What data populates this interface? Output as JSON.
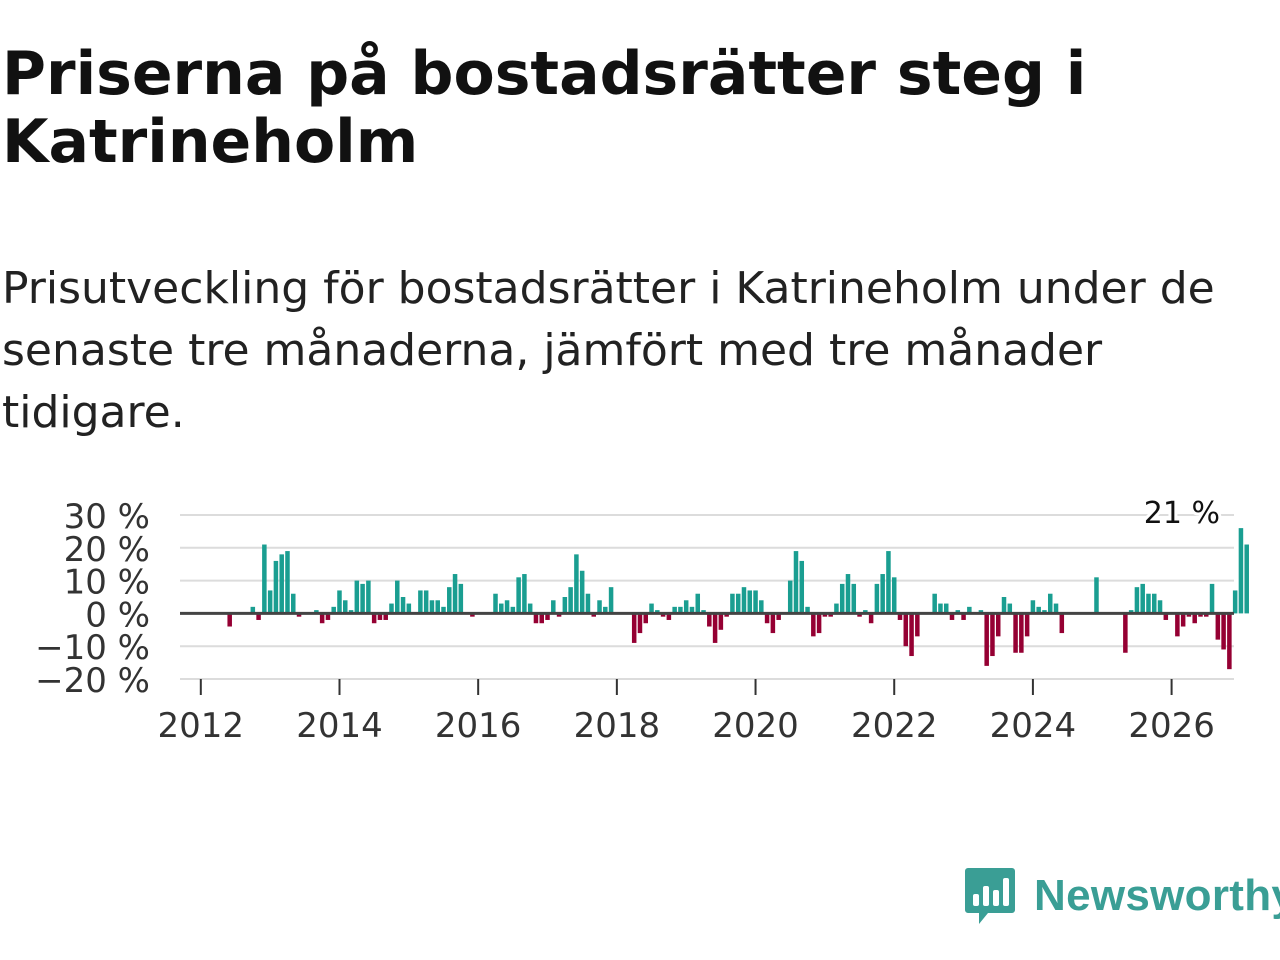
{
  "title": "Priserna på bostadsrätter steg i Katrineholm",
  "subtitle": "Prisutveckling för bostadsrätter i Katrineholm under de senaste tre månaderna, jämfört med tre månader tidigare.",
  "brand": {
    "name": "Newsworthy",
    "icon": "newsworthy-logo-icon",
    "color": "#3a9e95"
  },
  "colors": {
    "positive": "#1a9e91",
    "negative": "#950033",
    "grid": "#dcdcdc",
    "zero": "#444444"
  },
  "chart_data": {
    "type": "bar",
    "title": "Priserna på bostadsrätter steg i Katrineholm",
    "xlabel": "",
    "ylabel": "",
    "ylim": [
      -20,
      30
    ],
    "xlim": [
      2011.7,
      2026.9
    ],
    "yticks": [
      30,
      20,
      10,
      0,
      -10,
      -20
    ],
    "ytick_labels": [
      "30 %",
      "20 %",
      "10 %",
      "0 %",
      "−10 %",
      "−20 %"
    ],
    "xticks": [
      2012,
      2014,
      2016,
      2018,
      2020,
      2022,
      2024,
      2026
    ],
    "xtick_labels": [
      "2012",
      "2014",
      "2016",
      "2018",
      "2020",
      "2022",
      "2024",
      "2026"
    ],
    "annotation": {
      "text": "21 %",
      "x": 2026.15,
      "value": 21
    },
    "series": [
      {
        "name": "Prisutveckling (%)",
        "start": 2012.0,
        "step": 0.0833333,
        "values": [
          0,
          0,
          0,
          0,
          0,
          -4,
          0,
          0,
          0,
          2,
          -2,
          21,
          7,
          16,
          18,
          19,
          6,
          -1,
          0,
          0,
          1,
          -3,
          -2,
          2,
          7,
          4,
          1,
          10,
          9,
          10,
          -3,
          -2,
          -2,
          3,
          10,
          5,
          3,
          0,
          7,
          7,
          4,
          4,
          2,
          8,
          12,
          9,
          0,
          -1,
          0,
          0,
          0,
          6,
          3,
          4,
          2,
          11,
          12,
          3,
          -3,
          -3,
          -2,
          4,
          -1,
          5,
          8,
          18,
          13,
          6,
          -1,
          4,
          2,
          8,
          0,
          0,
          0,
          -9,
          -6,
          -3,
          3,
          1,
          -1,
          -2,
          2,
          2,
          4,
          2,
          6,
          1,
          -4,
          -9,
          -5,
          -1,
          6,
          6,
          8,
          7,
          7,
          4,
          -3,
          -6,
          -2,
          0,
          10,
          19,
          16,
          2,
          -7,
          -6,
          -1,
          -1,
          3,
          9,
          12,
          9,
          -1,
          1,
          -3,
          9,
          12,
          19,
          11,
          -2,
          -10,
          -13,
          -7,
          0,
          0,
          6,
          3,
          3,
          -2,
          1,
          -2,
          2,
          0,
          1,
          -16,
          -13,
          -7,
          5,
          3,
          -12,
          -12,
          -7,
          4,
          2,
          1,
          6,
          3,
          -6,
          0,
          0,
          0,
          0,
          0,
          11,
          0,
          0,
          0,
          0,
          -12,
          1,
          8,
          9,
          6,
          6,
          4,
          -2,
          0,
          -7,
          -4,
          -1,
          -3,
          -1,
          -1,
          9,
          -8,
          -11,
          -17,
          7,
          26,
          21
        ]
      }
    ]
  }
}
